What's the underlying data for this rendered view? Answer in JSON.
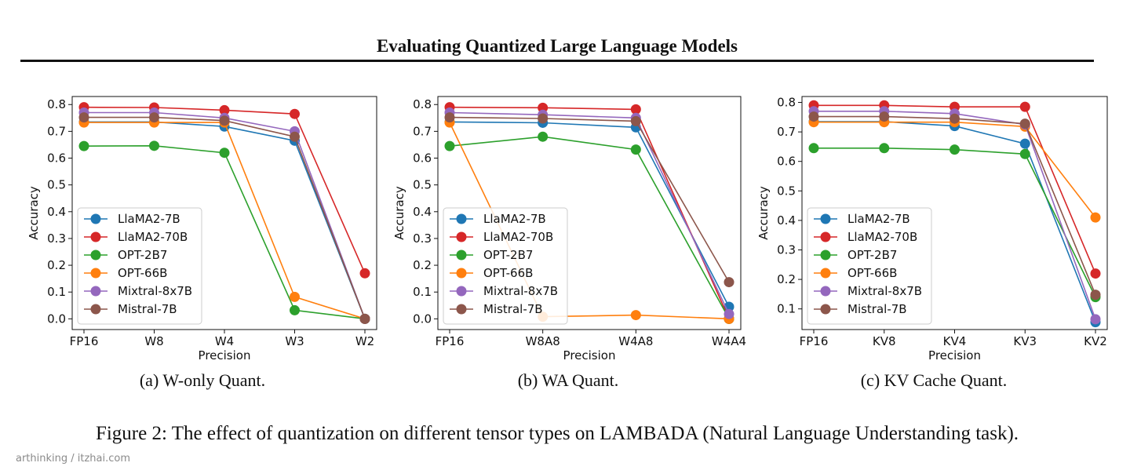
{
  "header": {
    "title": "Evaluating Quantized Large Language Models"
  },
  "figure": {
    "caption": "Figure 2: The effect of quantization on different tensor types on LAMBADA (Natural Language Understanding task).",
    "watermark": "arthinking / itzhai.com"
  },
  "colors": {
    "LlaMA2-7B": "#1f77b4",
    "LlaMA2-70B": "#d62728",
    "OPT-2B7": "#2ca02c",
    "OPT-66B": "#ff7f0e",
    "Mixtral-8x7B": "#9467bd",
    "Mistral-7B": "#8c564b"
  },
  "chart_data": [
    {
      "type": "line",
      "subcaption": "(a)  W-only Quant.",
      "xlabel": "Precision",
      "ylabel": "Accuracy",
      "categories": [
        "FP16",
        "W8",
        "W4",
        "W3",
        "W2"
      ],
      "ylim": [
        -0.04,
        0.83
      ],
      "yticks": [
        "0.0",
        "0.1",
        "0.2",
        "0.3",
        "0.4",
        "0.5",
        "0.6",
        "0.7",
        "0.8"
      ],
      "legend": "center-left",
      "series": [
        {
          "name": "LlaMA2-7B",
          "values": [
            0.735,
            0.735,
            0.718,
            0.665,
            0.0
          ]
        },
        {
          "name": "LlaMA2-70B",
          "values": [
            0.79,
            0.789,
            0.779,
            0.765,
            0.17
          ]
        },
        {
          "name": "OPT-2B7",
          "values": [
            0.645,
            0.646,
            0.62,
            0.032,
            0.0
          ]
        },
        {
          "name": "OPT-66B",
          "values": [
            0.733,
            0.733,
            0.733,
            0.082,
            0.0
          ]
        },
        {
          "name": "Mixtral-8x7B",
          "values": [
            0.77,
            0.77,
            0.75,
            0.7,
            0.0
          ]
        },
        {
          "name": "Mistral-7B",
          "values": [
            0.752,
            0.752,
            0.74,
            0.68,
            0.0
          ]
        }
      ]
    },
    {
      "type": "line",
      "subcaption": "(b)  WA Quant.",
      "xlabel": "Precision",
      "ylabel": "Accuracy",
      "categories": [
        "FP16",
        "W8A8",
        "W4A8",
        "W4A4"
      ],
      "ylim": [
        -0.04,
        0.83
      ],
      "yticks": [
        "0.0",
        "0.1",
        "0.2",
        "0.3",
        "0.4",
        "0.5",
        "0.6",
        "0.7",
        "0.8"
      ],
      "legend": "center-left",
      "series": [
        {
          "name": "LlaMA2-7B",
          "values": [
            0.735,
            0.732,
            0.715,
            0.045
          ]
        },
        {
          "name": "LlaMA2-70B",
          "values": [
            0.79,
            0.788,
            0.782,
            0.0
          ]
        },
        {
          "name": "OPT-2B7",
          "values": [
            0.645,
            0.68,
            0.632,
            0.0
          ]
        },
        {
          "name": "OPT-66B",
          "values": [
            0.733,
            0.008,
            0.014,
            0.0
          ]
        },
        {
          "name": "Mixtral-8x7B",
          "values": [
            0.77,
            0.762,
            0.75,
            0.018
          ]
        },
        {
          "name": "Mistral-7B",
          "values": [
            0.752,
            0.748,
            0.738,
            0.137
          ]
        }
      ]
    },
    {
      "type": "line",
      "subcaption": "(c)  KV Cache Quant.",
      "xlabel": "Precision",
      "ylabel": "Accuracy",
      "categories": [
        "FP16",
        "KV8",
        "KV4",
        "KV3",
        "KV2"
      ],
      "ylim": [
        0.03,
        0.82
      ],
      "yticks": [
        "0.1",
        "0.2",
        "0.3",
        "0.4",
        "0.5",
        "0.6",
        "0.7",
        "0.8"
      ],
      "legend": "center-left",
      "series": [
        {
          "name": "LlaMA2-7B",
          "values": [
            0.735,
            0.735,
            0.72,
            0.66,
            0.055
          ]
        },
        {
          "name": "LlaMA2-70B",
          "values": [
            0.79,
            0.79,
            0.785,
            0.785,
            0.22
          ]
        },
        {
          "name": "OPT-2B7",
          "values": [
            0.645,
            0.645,
            0.64,
            0.625,
            0.14
          ]
        },
        {
          "name": "OPT-66B",
          "values": [
            0.733,
            0.733,
            0.733,
            0.718,
            0.41
          ]
        },
        {
          "name": "Mixtral-8x7B",
          "values": [
            0.77,
            0.77,
            0.762,
            0.725,
            0.065
          ]
        },
        {
          "name": "Mistral-7B",
          "values": [
            0.752,
            0.752,
            0.745,
            0.728,
            0.148
          ]
        }
      ]
    }
  ]
}
